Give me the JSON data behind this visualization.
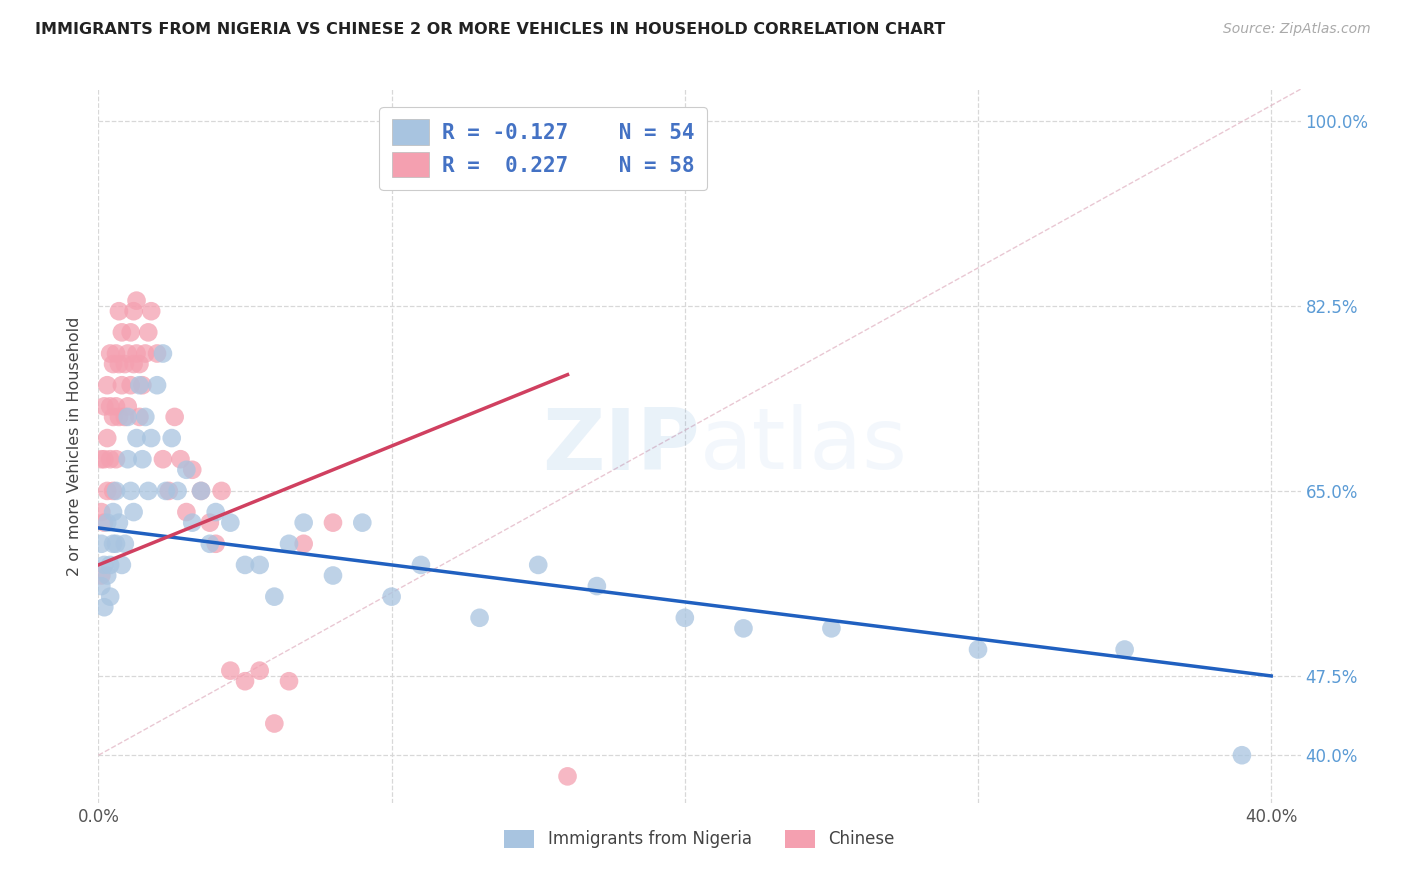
{
  "title": "IMMIGRANTS FROM NIGERIA VS CHINESE 2 OR MORE VEHICLES IN HOUSEHOLD CORRELATION CHART",
  "source": "Source: ZipAtlas.com",
  "ylabel": "2 or more Vehicles in Household",
  "legend_label1": "Immigrants from Nigeria",
  "legend_label2": "Chinese",
  "r1": -0.127,
  "n1": 54,
  "r2": 0.227,
  "n2": 58,
  "color1": "#a8c4e0",
  "color2": "#f4a0b0",
  "line_color1": "#2060C0",
  "line_color2": "#D04060",
  "xmin": 0.0,
  "xmax": 0.41,
  "ymin": 0.355,
  "ymax": 1.03,
  "ytick_pos": [
    0.4,
    0.475,
    0.65,
    0.825,
    1.0
  ],
  "ytick_labels": [
    "40.0%",
    "47.5%",
    "65.0%",
    "82.5%",
    "100.0%"
  ],
  "watermark_zip": "ZIP",
  "watermark_atlas": "atlas",
  "background_color": "#ffffff",
  "grid_color": "#d8d8d8",
  "nigeria_x": [
    0.001,
    0.001,
    0.002,
    0.002,
    0.003,
    0.003,
    0.004,
    0.004,
    0.005,
    0.005,
    0.006,
    0.006,
    0.007,
    0.008,
    0.009,
    0.01,
    0.01,
    0.011,
    0.012,
    0.013,
    0.014,
    0.015,
    0.016,
    0.017,
    0.018,
    0.02,
    0.022,
    0.023,
    0.025,
    0.027,
    0.03,
    0.032,
    0.035,
    0.038,
    0.04,
    0.045,
    0.05,
    0.055,
    0.06,
    0.065,
    0.07,
    0.08,
    0.09,
    0.1,
    0.11,
    0.13,
    0.15,
    0.17,
    0.2,
    0.22,
    0.25,
    0.3,
    0.35,
    0.39
  ],
  "nigeria_y": [
    0.6,
    0.56,
    0.58,
    0.54,
    0.62,
    0.57,
    0.58,
    0.55,
    0.6,
    0.63,
    0.65,
    0.6,
    0.62,
    0.58,
    0.6,
    0.72,
    0.68,
    0.65,
    0.63,
    0.7,
    0.75,
    0.68,
    0.72,
    0.65,
    0.7,
    0.75,
    0.78,
    0.65,
    0.7,
    0.65,
    0.67,
    0.62,
    0.65,
    0.6,
    0.63,
    0.62,
    0.58,
    0.58,
    0.55,
    0.6,
    0.62,
    0.57,
    0.62,
    0.55,
    0.58,
    0.53,
    0.58,
    0.56,
    0.53,
    0.52,
    0.52,
    0.5,
    0.5,
    0.4
  ],
  "chinese_x": [
    0.001,
    0.001,
    0.001,
    0.002,
    0.002,
    0.002,
    0.003,
    0.003,
    0.003,
    0.004,
    0.004,
    0.004,
    0.005,
    0.005,
    0.005,
    0.006,
    0.006,
    0.006,
    0.007,
    0.007,
    0.007,
    0.008,
    0.008,
    0.009,
    0.009,
    0.01,
    0.01,
    0.011,
    0.011,
    0.012,
    0.012,
    0.013,
    0.013,
    0.014,
    0.014,
    0.015,
    0.016,
    0.017,
    0.018,
    0.02,
    0.022,
    0.024,
    0.026,
    0.028,
    0.03,
    0.032,
    0.035,
    0.038,
    0.04,
    0.042,
    0.045,
    0.05,
    0.055,
    0.06,
    0.065,
    0.07,
    0.08,
    0.16
  ],
  "chinese_y": [
    0.57,
    0.63,
    0.68,
    0.62,
    0.68,
    0.73,
    0.65,
    0.7,
    0.75,
    0.68,
    0.73,
    0.78,
    0.65,
    0.72,
    0.77,
    0.68,
    0.73,
    0.78,
    0.72,
    0.77,
    0.82,
    0.75,
    0.8,
    0.72,
    0.77,
    0.73,
    0.78,
    0.75,
    0.8,
    0.77,
    0.82,
    0.78,
    0.83,
    0.72,
    0.77,
    0.75,
    0.78,
    0.8,
    0.82,
    0.78,
    0.68,
    0.65,
    0.72,
    0.68,
    0.63,
    0.67,
    0.65,
    0.62,
    0.6,
    0.65,
    0.48,
    0.47,
    0.48,
    0.43,
    0.47,
    0.6,
    0.62,
    0.38
  ]
}
